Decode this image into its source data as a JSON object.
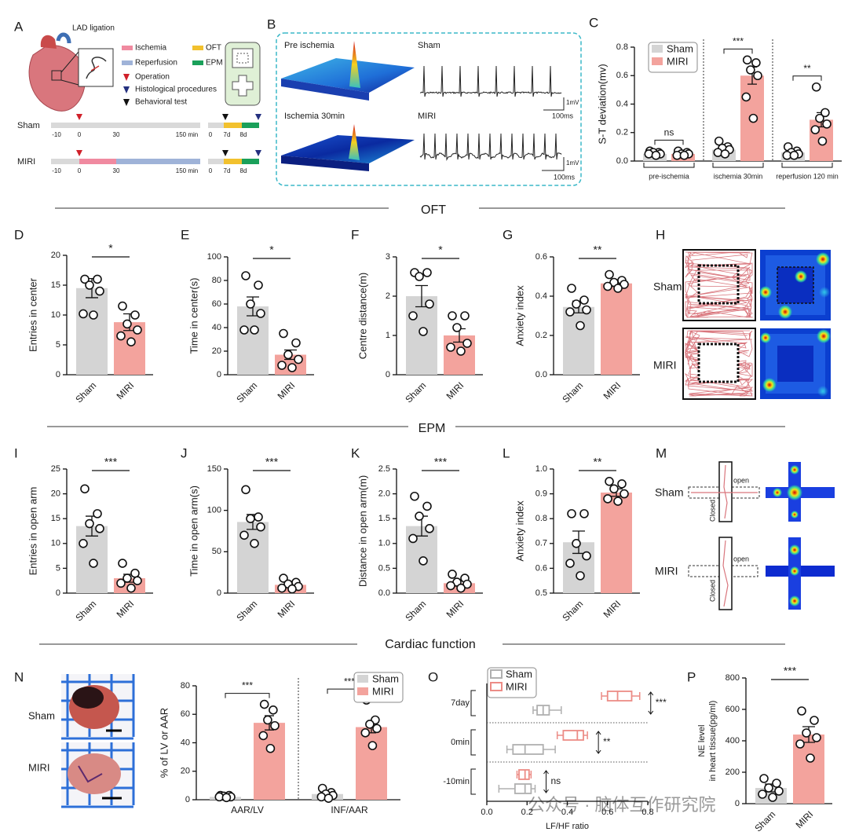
{
  "figure": {
    "panel_letters": [
      "A",
      "B",
      "C",
      "D",
      "E",
      "F",
      "G",
      "H",
      "I",
      "J",
      "K",
      "L",
      "M",
      "N",
      "O",
      "P"
    ],
    "sections": [
      "OFT",
      "EPM",
      "Cardiac function"
    ],
    "panel_a": {
      "ligation": "LAD ligation",
      "legend": [
        "Ischemia",
        "Reperfusion",
        "Operation",
        "Histological procedures",
        "Behavioral test",
        "OFT",
        "EPM"
      ],
      "timelines": [
        {
          "name": "Sham",
          "ticks": [
            "-10",
            "0",
            "30",
            "150 min",
            "0",
            "7d",
            "8d"
          ]
        },
        {
          "name": "MIRI",
          "ticks": [
            "-10",
            "0",
            "30",
            "150 min",
            "0",
            "7d",
            "8d"
          ]
        }
      ]
    },
    "panel_b": {
      "traces": [
        {
          "map": "Pre ischemia",
          "ecg": "Sham"
        },
        {
          "map": "Ischemia 30min",
          "ecg": "MIRI"
        }
      ],
      "scale": {
        "v": "1mV",
        "t": "100ms"
      }
    },
    "panel_h": {
      "rows": [
        "Sham",
        "MIRI"
      ]
    },
    "panel_m": {
      "rows": [
        {
          "name": "Sham",
          "open": "open",
          "closed": "Closed"
        },
        {
          "name": "MIRI",
          "open": "open",
          "closed": "Closed"
        }
      ]
    },
    "panel_n": {
      "rows": [
        "Sham",
        "MIRI"
      ]
    },
    "watermark": "公众号 · 脑体互作研究院"
  },
  "chart_data": [
    {
      "type": "grouped_bar",
      "ylabel": "S-T deviation(mv)",
      "categories": [
        "pre-ischemia",
        "ischemia 30min",
        "reperfusion 120 min"
      ],
      "series": [
        {
          "name": "Sham",
          "color": "#d4d4d4",
          "values": [
            0.05,
            0.08,
            0.06
          ],
          "errors": [
            0.01,
            0.02,
            0.01
          ],
          "points": [
            [
              0.07,
              0.06,
              0.06,
              0.05,
              0.05,
              0.04
            ],
            [
              0.14,
              0.1,
              0.09,
              0.08,
              0.06,
              0.05
            ],
            [
              0.1,
              0.07,
              0.06,
              0.05,
              0.04,
              0.04
            ]
          ]
        },
        {
          "name": "MIRI",
          "color": "#f3a39d",
          "values": [
            0.05,
            0.6,
            0.29
          ],
          "errors": [
            0.01,
            0.06,
            0.05
          ],
          "points": [
            [
              0.07,
              0.06,
              0.05,
              0.05,
              0.04,
              0.04
            ],
            [
              0.71,
              0.69,
              0.64,
              0.6,
              0.45,
              0.3
            ],
            [
              0.52,
              0.34,
              0.3,
              0.26,
              0.22,
              0.14
            ]
          ]
        }
      ],
      "significance": [
        "ns",
        "***",
        "**"
      ],
      "ylim": [
        0,
        0.8
      ],
      "yticks": [
        {
          "value": 0,
          "label": "0.0"
        },
        0.2,
        0.4,
        0.6,
        0.8
      ],
      "legend": "top-left"
    },
    {
      "type": "bar",
      "ylabel": "Entries in center",
      "categories": [
        "Sham",
        "MIRI"
      ],
      "values": [
        14.5,
        8.8
      ],
      "errors": [
        1.6,
        1.4
      ],
      "points": [
        [
          16,
          16,
          15,
          14,
          10.2,
          10
        ],
        [
          11.5,
          10,
          8.5,
          7.5,
          6.5,
          5.5
        ]
      ],
      "colors": [
        "#d4d4d4",
        "#f3a39d"
      ],
      "significance": "*",
      "ylim": [
        0,
        20
      ],
      "yticks": [
        0,
        5,
        10,
        15,
        20
      ]
    },
    {
      "type": "bar",
      "ylabel": "Time in center(s)",
      "categories": [
        "Sham",
        "MIRI"
      ],
      "values": [
        58,
        17
      ],
      "errors": [
        8,
        4
      ],
      "points": [
        [
          84,
          76,
          60,
          52,
          38,
          38
        ],
        [
          35,
          27,
          17,
          13,
          8,
          6
        ]
      ],
      "colors": [
        "#d4d4d4",
        "#f3a39d"
      ],
      "significance": "*",
      "ylim": [
        0,
        100
      ],
      "yticks": [
        0,
        20,
        40,
        60,
        80,
        100
      ]
    },
    {
      "type": "bar",
      "ylabel": "Centre distance(m)",
      "categories": [
        "Sham",
        "MIRI"
      ],
      "values": [
        2.0,
        1.0
      ],
      "errors": [
        0.27,
        0.17
      ],
      "points": [
        [
          2.6,
          2.6,
          2.5,
          1.8,
          1.5,
          1.1
        ],
        [
          1.5,
          1.5,
          1.2,
          0.8,
          0.7,
          0.6
        ]
      ],
      "colors": [
        "#d4d4d4",
        "#f3a39d"
      ],
      "significance": "*",
      "ylim": [
        0,
        3
      ],
      "yticks": [
        0,
        1,
        2,
        3
      ]
    },
    {
      "type": "bar",
      "ylabel": "Anxiety index",
      "categories": [
        "Sham",
        "MIRI"
      ],
      "values": [
        0.345,
        0.465
      ],
      "errors": [
        0.03,
        0.015
      ],
      "points": [
        [
          0.44,
          0.38,
          0.36,
          0.33,
          0.32,
          0.25
        ],
        [
          0.51,
          0.48,
          0.47,
          0.46,
          0.45,
          0.44
        ]
      ],
      "colors": [
        "#d4d4d4",
        "#f3a39d"
      ],
      "significance": "**",
      "ylim": [
        0,
        0.6
      ],
      "yticks": [
        {
          "value": 0,
          "label": "0.0"
        },
        0.2,
        0.4,
        0.6
      ]
    },
    {
      "type": "bar",
      "ylabel": "Entries in open arm",
      "categories": [
        "Sham",
        "MIRI"
      ],
      "values": [
        13.5,
        3
      ],
      "errors": [
        2,
        0.8
      ],
      "points": [
        [
          21,
          16,
          14,
          13,
          10,
          6
        ],
        [
          6,
          4,
          3,
          2.5,
          2,
          1
        ]
      ],
      "colors": [
        "#d4d4d4",
        "#f3a39d"
      ],
      "significance": "***",
      "ylim": [
        0,
        25
      ],
      "yticks": [
        0,
        5,
        10,
        15,
        20,
        25
      ]
    },
    {
      "type": "bar",
      "ylabel": "Time in open arm(s)",
      "categories": [
        "Sham",
        "MIRI"
      ],
      "values": [
        86,
        10
      ],
      "errors": [
        9,
        2
      ],
      "points": [
        [
          125,
          92,
          90,
          80,
          70,
          60
        ],
        [
          18,
          13,
          11,
          8,
          6,
          5
        ]
      ],
      "colors": [
        "#d4d4d4",
        "#f3a39d"
      ],
      "significance": "***",
      "ylim": [
        0,
        150
      ],
      "yticks": [
        0,
        50,
        100,
        150
      ]
    },
    {
      "type": "bar",
      "ylabel": "Distance in open arm(m)",
      "categories": [
        "Sham",
        "MIRI"
      ],
      "values": [
        1.35,
        0.2
      ],
      "errors": [
        0.2,
        0.05
      ],
      "points": [
        [
          1.95,
          1.75,
          1.55,
          1.3,
          1.1,
          0.65
        ],
        [
          0.38,
          0.3,
          0.22,
          0.18,
          0.15,
          0.1
        ]
      ],
      "colors": [
        "#d4d4d4",
        "#f3a39d"
      ],
      "significance": "***",
      "ylim": [
        0,
        2.5
      ],
      "yticks": [
        {
          "value": 0,
          "label": "0.0"
        },
        0.5,
        {
          "value": 1,
          "label": "1.0"
        },
        1.5,
        {
          "value": 2,
          "label": "2.0"
        },
        2.5
      ]
    },
    {
      "type": "bar",
      "ylabel": "Anxiety index",
      "categories": [
        "Sham",
        "MIRI"
      ],
      "values": [
        0.705,
        0.905
      ],
      "errors": [
        0.045,
        0.015
      ],
      "points": [
        [
          0.82,
          0.82,
          0.7,
          0.65,
          0.62,
          0.57
        ],
        [
          0.95,
          0.94,
          0.92,
          0.9,
          0.88,
          0.87
        ]
      ],
      "colors": [
        "#d4d4d4",
        "#f3a39d"
      ],
      "significance": "**",
      "ylim": [
        0.5,
        1.0
      ],
      "yticks": [
        0.5,
        0.6,
        0.7,
        0.8,
        0.9,
        {
          "value": 1,
          "label": "1.0"
        }
      ]
    },
    {
      "type": "grouped_bar",
      "ylabel": "% of LV or AAR",
      "categories": [
        "AAR/LV",
        "INF/AAR"
      ],
      "series": [
        {
          "name": "Sham",
          "color": "#d4d4d4",
          "values": [
            2,
            4
          ],
          "errors": [
            0.5,
            1
          ],
          "points": [
            [
              3,
              3,
              2.5,
              2,
              2,
              1.5
            ],
            [
              8,
              5,
              4,
              3,
              2,
              1
            ]
          ]
        },
        {
          "name": "MIRI",
          "color": "#f3a39d",
          "values": [
            54,
            51
          ],
          "errors": [
            5,
            4
          ],
          "points": [
            [
              67,
              63,
              56,
              52,
              45,
              36
            ],
            [
              70,
              56,
              53,
              50,
              47,
              38
            ]
          ]
        }
      ],
      "significance": [
        "***",
        "***"
      ],
      "ylim": [
        0,
        80
      ],
      "yticks": [
        0,
        20,
        40,
        60,
        80
      ],
      "legend": "top-right"
    },
    {
      "type": "box",
      "xlabel": "LF/HF ratio",
      "categories": [
        "7day",
        "0min",
        "-10min"
      ],
      "series": [
        {
          "name": "Sham",
          "color": "#b0b0b0",
          "boxes": [
            [
              0.23,
              0.25,
              0.28,
              0.31,
              0.37
            ],
            [
              0.1,
              0.13,
              0.19,
              0.28,
              0.34
            ],
            [
              0.06,
              0.14,
              0.19,
              0.22,
              0.24
            ]
          ]
        },
        {
          "name": "MIRI",
          "color": "#ec8c86",
          "boxes": [
            [
              0.57,
              0.6,
              0.65,
              0.72,
              0.76
            ],
            [
              0.35,
              0.38,
              0.45,
              0.48,
              0.5
            ],
            [
              0.15,
              0.16,
              0.19,
              0.21,
              0.22
            ]
          ]
        }
      ],
      "significance": [
        "***",
        "**",
        "ns"
      ],
      "xlim": [
        0,
        0.8
      ],
      "xticks": [
        {
          "value": 0,
          "label": "0.0"
        },
        0.2,
        0.4,
        0.6,
        0.8
      ],
      "legend": "top-left"
    },
    {
      "type": "bar",
      "ylabel": [
        "NE level",
        "in heart tissue(pg/ml)"
      ],
      "categories": [
        "Sham",
        "MIRI"
      ],
      "values": [
        100,
        440
      ],
      "errors": [
        25,
        50
      ],
      "points": [
        [
          160,
          130,
          100,
          80,
          60,
          40
        ],
        [
          590,
          530,
          450,
          420,
          380,
          290
        ]
      ],
      "colors": [
        "#d4d4d4",
        "#f3a39d"
      ],
      "significance": "***",
      "ylim": [
        0,
        800
      ],
      "yticks": [
        0,
        200,
        400,
        600,
        800
      ]
    }
  ]
}
